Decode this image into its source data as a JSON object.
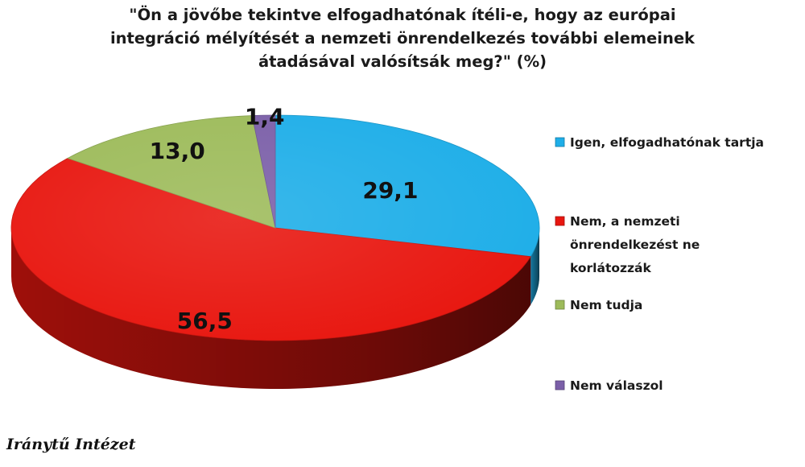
{
  "chart_data": {
    "type": "pie",
    "title": "\"Ön a jövőbe tekintve elfogadhatónak ítéli-e, hogy az európai\nintegráció mélyítését a nemzeti önrendelkezés további elemeinek\nátadásával valósítsák meg?\" (%)",
    "slices": [
      {
        "label": "Igen, elfogadhatónak tartja",
        "label_lines": [
          "Igen, elfogadhatónak tartja"
        ],
        "value": 29.1,
        "value_text": "29,1",
        "color": "#1eaee8"
      },
      {
        "label": "Nem, a nemzeti önrendelkezést ne korlátozzák",
        "label_lines": [
          "Nem, a nemzeti",
          "önrendelkezést ne",
          "korlátozzák"
        ],
        "value": 56.5,
        "value_text": "56,5",
        "color": "#e8160f"
      },
      {
        "label": "Nem tudja",
        "label_lines": [
          "Nem tudja"
        ],
        "value": 13.0,
        "value_text": "13,0",
        "color": "#9dbb5a"
      },
      {
        "label": "Nem válaszol",
        "label_lines": [
          "Nem válaszol"
        ],
        "value": 1.4,
        "value_text": "1,4",
        "color": "#7b5fa8"
      }
    ],
    "legend_position": "right"
  },
  "source": "Iránytű Intézet"
}
